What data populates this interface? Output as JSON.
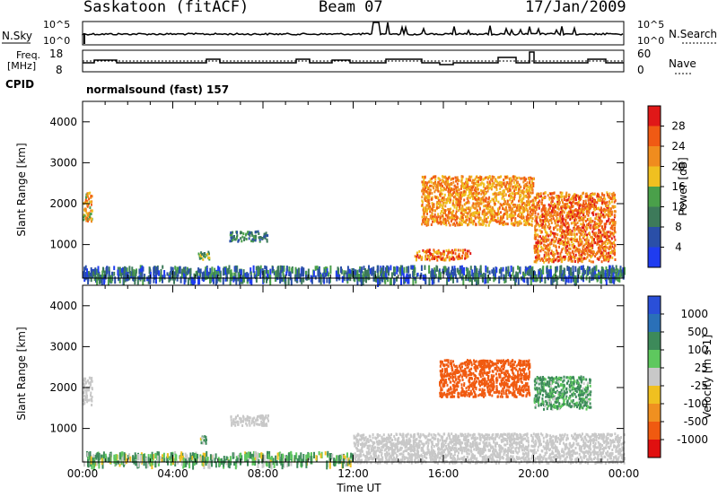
{
  "header": {
    "station": "Saskatoon (fitACF)",
    "beam": "Beam 07",
    "date": "17/Jan/2009"
  },
  "noise_panel": {
    "left_label": "N.Sky",
    "right_label": "N.Search",
    "left_ticks": [
      "10^5",
      "10^0"
    ],
    "right_ticks": [
      "10^5",
      "10^0"
    ]
  },
  "freq_panel": {
    "left_label_line1": "Freq.",
    "left_label_line2": "[MHz]",
    "left_ticks": [
      "18",
      "8"
    ],
    "right_label": "Nave",
    "right_ticks": [
      "60",
      "0"
    ]
  },
  "cpid": {
    "label": "CPID",
    "program": "normalsound (fast) 157"
  },
  "time_axis": {
    "title": "Time UT",
    "ticks": [
      "00:00",
      "04:00",
      "08:00",
      "12:00",
      "16:00",
      "20:00",
      "00:00"
    ]
  },
  "colors": {
    "power": [
      "#1f3cf0",
      "#2a4fa8",
      "#3d7a5a",
      "#4aa04a",
      "#f0c020",
      "#f08c1e",
      "#f05a14",
      "#e01818"
    ],
    "velocity": [
      "#2a4fd8",
      "#2a70b8",
      "#3d8a5a",
      "#5ec85e",
      "#c8c8c8",
      "#f0c020",
      "#f09020",
      "#f05a10",
      "#e01010"
    ],
    "background": "#ffffff",
    "axis": "#000000"
  },
  "chart_data": [
    {
      "type": "heatmap",
      "title": "Power",
      "xlabel": "",
      "ylabel": "Slant Range [km]",
      "colorbar_label": "Power [dB]",
      "colorbar_ticks": [
        "28",
        "24",
        "20",
        "16",
        "12",
        "8",
        "4"
      ],
      "xlim_hours": [
        0,
        24
      ],
      "ylim_km": [
        180,
        4500
      ],
      "y_ticks": [
        "4000",
        "3000",
        "2000",
        "1000"
      ],
      "features": [
        {
          "t_start": 0.0,
          "t_end": 0.4,
          "r_start": 1600,
          "r_end": 2300,
          "level": 20
        },
        {
          "t_start": 5.1,
          "t_end": 5.6,
          "r_start": 650,
          "r_end": 850,
          "level": 14
        },
        {
          "t_start": 6.5,
          "t_end": 8.2,
          "r_start": 1100,
          "r_end": 1350,
          "level": 10
        },
        {
          "t_start": 0.0,
          "t_end": 24.0,
          "r_start": 180,
          "r_end": 500,
          "level": 8
        },
        {
          "t_start": 14.7,
          "t_end": 17.2,
          "r_start": 650,
          "r_end": 900,
          "level": 24
        },
        {
          "t_start": 15.0,
          "t_end": 20.0,
          "r_start": 1500,
          "r_end": 2700,
          "level": 22
        },
        {
          "t_start": 20.0,
          "t_end": 23.6,
          "r_start": 600,
          "r_end": 2300,
          "level": 24
        }
      ]
    },
    {
      "type": "heatmap",
      "title": "Velocity",
      "xlabel": "Time UT",
      "ylabel": "Slant Range [km]",
      "colorbar_label": "Velocity [m s-1]",
      "colorbar_ticks": [
        "1000",
        "500",
        "100",
        "25",
        "-25",
        "-100",
        "-500",
        "-1000"
      ],
      "xlim_hours": [
        0,
        24
      ],
      "ylim_km": [
        180,
        4500
      ],
      "y_ticks": [
        "4000",
        "3000",
        "2000",
        "1000"
      ],
      "features": [
        {
          "t_start": 0.0,
          "t_end": 0.4,
          "r_start": 1600,
          "r_end": 2300,
          "vel": 0
        },
        {
          "t_start": 5.2,
          "t_end": 5.5,
          "r_start": 650,
          "r_end": 850,
          "vel": 120
        },
        {
          "t_start": 6.5,
          "t_end": 8.2,
          "r_start": 1100,
          "r_end": 1350,
          "vel": 0
        },
        {
          "t_start": 0.0,
          "t_end": 12.0,
          "r_start": 180,
          "r_end": 450,
          "vel": 80
        },
        {
          "t_start": 12.0,
          "t_end": 24.0,
          "r_start": 180,
          "r_end": 900,
          "vel": 0
        },
        {
          "t_start": 15.8,
          "t_end": 19.8,
          "r_start": 1800,
          "r_end": 2700,
          "vel": -700
        },
        {
          "t_start": 20.0,
          "t_end": 22.5,
          "r_start": 1500,
          "r_end": 2300,
          "vel": 150
        }
      ]
    }
  ]
}
